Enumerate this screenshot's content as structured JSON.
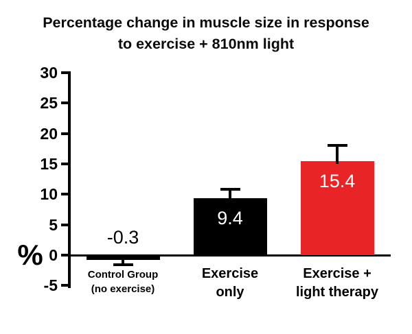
{
  "title": {
    "line1": "Percentage change in muscle size in response",
    "line2": "to exercise + 810nm light"
  },
  "y_axis": {
    "unit_label": "%",
    "ticks": [
      "30",
      "25",
      "20",
      "15",
      "10",
      "5",
      "0",
      "-5"
    ]
  },
  "bars": [
    {
      "value": "-0.3",
      "label_line1": "Control Group",
      "label_line2": "(no exercise)"
    },
    {
      "value": "9.4",
      "label_line1": "Exercise",
      "label_line2": "only"
    },
    {
      "value": "15.4",
      "label_line1": "Exercise +",
      "label_line2": "light therapy"
    }
  ],
  "chart_data": {
    "type": "bar",
    "title": "Percentage change in muscle size in response to exercise + 810nm light",
    "ylabel": "%",
    "ylim": [
      -5,
      30
    ],
    "ytick_interval": 5,
    "grid": false,
    "legend": false,
    "categories": [
      "Control Group (no exercise)",
      "Exercise only",
      "Exercise + light therapy"
    ],
    "values": [
      -0.3,
      9.4,
      15.4
    ],
    "value_labels": [
      "-0.3",
      "9.4",
      "15.4"
    ],
    "errors": [
      1.3,
      1.4,
      2.7
    ],
    "error_directions": [
      "down",
      "up",
      "up"
    ],
    "bar_colors": [
      "#000000",
      "#000000",
      "#E92427"
    ],
    "value_label_colors": [
      "#000000",
      "#FFFFFF",
      "#FFFFFF"
    ],
    "error_bar_color": "#000000",
    "axis_color": "#000000",
    "background_color": "#FFFFFF"
  }
}
